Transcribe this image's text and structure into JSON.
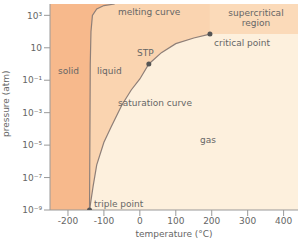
{
  "chart_data": {
    "type": "area",
    "x_label": "temperature (°C)",
    "y_label": "pressure (atm)",
    "xlim": [
      -250,
      440
    ],
    "xticks": [
      -200,
      -100,
      0,
      100,
      200,
      300,
      400
    ],
    "ylim": [
      1e-09,
      5000
    ],
    "log": "y",
    "yticks": [
      {
        "value": 1e-09,
        "label": "10⁻⁹"
      },
      {
        "value": 1e-07,
        "label": "10⁻⁷"
      },
      {
        "value": 1e-05,
        "label": "10⁻⁵"
      },
      {
        "value": 0.001,
        "label": "10⁻³"
      },
      {
        "value": 0.1,
        "label": "10⁻¹"
      },
      10,
      {
        "value": 1000,
        "label": "10³"
      }
    ],
    "regions": [
      {
        "name": "solid",
        "color": "#f7b98c"
      },
      {
        "name": "liquid",
        "color": "#fad4b0"
      },
      {
        "name": "gas",
        "color": "#fdf0dd"
      },
      {
        "name": "supercritical region",
        "color": "#fbdab9"
      }
    ],
    "series": [
      {
        "name": "melting curve",
        "color": "#8e7f78",
        "x": [
          -140,
          -138,
          -136,
          -132,
          -120,
          -100,
          -70
        ],
        "values": [
          1e-09,
          1,
          100,
          1000,
          2500,
          4000,
          5000
        ]
      },
      {
        "name": "saturation curve",
        "color": "#8e7f78",
        "x": [
          -140,
          -130,
          -120,
          -100,
          -80,
          -50,
          -24,
          0,
          25,
          60,
          100,
          150,
          195
        ],
        "values": [
          1e-09,
          3e-08,
          6e-07,
          1.5e-05,
          0.00013,
          0.003,
          0.025,
          0.12,
          1,
          5,
          18,
          40,
          70
        ]
      }
    ],
    "points": [
      {
        "name": "STP",
        "x": 25,
        "y": 1
      },
      {
        "name": "critical point",
        "x": 195,
        "y": 70
      },
      {
        "name": "triple point",
        "x": -140,
        "y": 1e-09
      }
    ]
  }
}
